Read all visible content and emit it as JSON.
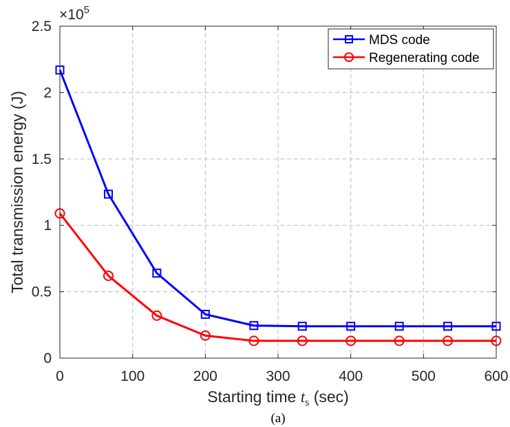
{
  "chart_data": {
    "type": "line",
    "x": [
      0,
      66.7,
      133.3,
      200,
      266.7,
      333.3,
      400,
      466.7,
      533.3,
      600
    ],
    "series": [
      {
        "name": "MDS code",
        "color": "#0000ff",
        "marker": "square",
        "values": [
          2.17,
          1.235,
          0.64,
          0.33,
          0.245,
          0.24,
          0.24,
          0.24,
          0.24,
          0.24
        ]
      },
      {
        "name": "Regenerating code",
        "color": "#ff0000",
        "marker": "circle",
        "values": [
          1.09,
          0.62,
          0.32,
          0.17,
          0.13,
          0.13,
          0.13,
          0.13,
          0.13,
          0.13
        ]
      }
    ],
    "xlim": [
      0,
      600
    ],
    "ylim": [
      0,
      2.5
    ],
    "xticks": [
      "0",
      "100",
      "200",
      "300",
      "400",
      "500",
      "600"
    ],
    "yticks": [
      "0",
      "0.5",
      "1",
      "1.5",
      "2",
      "2.5"
    ],
    "y_multiplier": "×10",
    "y_multiplier_exp": "5",
    "xlabel_prefix": "Starting time ",
    "xlabel_var": "t",
    "xlabel_sub": "s",
    "xlabel_suffix": " (sec)",
    "ylabel": "Total transmission energy (J)",
    "caption": "(a)",
    "grid": true,
    "legend_position": "top-right"
  }
}
